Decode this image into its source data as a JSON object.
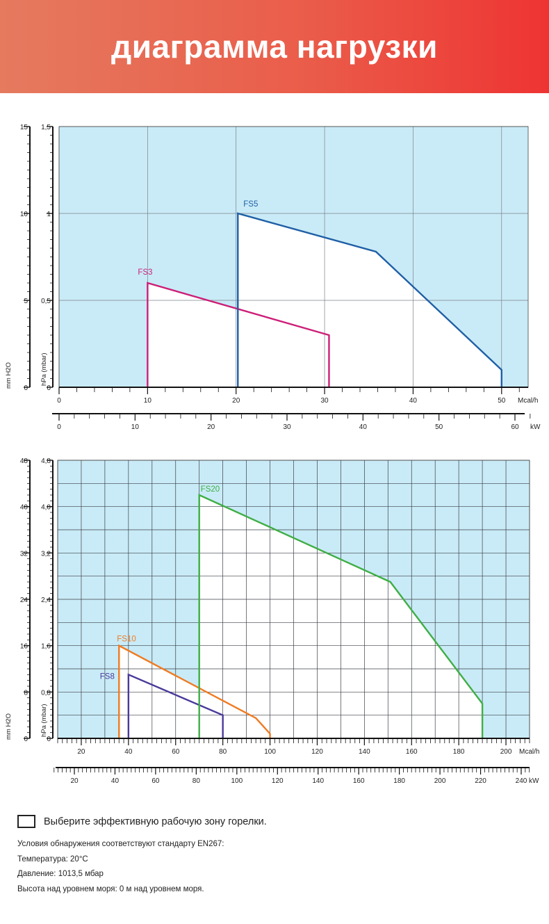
{
  "banner": {
    "title": "диаграмма нагрузки"
  },
  "chart_data": [
    {
      "type": "area",
      "left_axis_label_outer": "mm H2O",
      "left_axis_label_inner": "hPa (mbar)",
      "y_outer_ticks": [
        "15",
        "10",
        "5",
        "0"
      ],
      "y_inner_ticks": [
        "1,5",
        "1",
        "0,5",
        "0"
      ],
      "y_inner_range": [
        0,
        1.5
      ],
      "x_label": "Mcal/h",
      "x_ticks": [
        "0",
        "10",
        "20",
        "30",
        "40",
        "50"
      ],
      "x_range": [
        0,
        53
      ],
      "x2_label": "kW",
      "x2_ticks": [
        "0",
        "10",
        "20",
        "30",
        "40",
        "50",
        "60"
      ],
      "grid": true,
      "colors": {
        "background": "#c9ebf7",
        "grid": "#7a8088"
      },
      "series": [
        {
          "name": "FS3",
          "color": "#cc1f78",
          "points": [
            [
              10,
              0
            ],
            [
              10,
              0.6
            ],
            [
              30.5,
              0.3
            ],
            [
              30.5,
              0
            ]
          ]
        },
        {
          "name": "FS5",
          "color": "#1f5fa6",
          "points": [
            [
              20.2,
              0
            ],
            [
              20.2,
              1.0
            ],
            [
              35.8,
              0.78
            ],
            [
              50,
              0.1
            ],
            [
              50,
              0
            ]
          ]
        }
      ]
    },
    {
      "type": "area",
      "left_axis_label_outer": "mm H2O",
      "left_axis_label_inner": "hPa (mbar)",
      "y_outer_ticks": [
        "48",
        "40",
        "32",
        "24",
        "16",
        "8",
        "0"
      ],
      "y_inner_ticks": [
        "4,8",
        "4,0",
        "3,2",
        "2,4",
        "1,6",
        "0,8",
        "0"
      ],
      "y_inner_range": [
        0,
        4.8
      ],
      "x_label": "Mcal/h",
      "x_ticks": [
        "20",
        "40",
        "60",
        "80",
        "100",
        "120",
        "140",
        "160",
        "180",
        "200"
      ],
      "x_range": [
        10,
        210
      ],
      "x2_label": "kW",
      "x2_ticks": [
        "20",
        "40",
        "60",
        "80",
        "100",
        "120",
        "140",
        "160",
        "180",
        "200",
        "220",
        "240"
      ],
      "grid": true,
      "colors": {
        "background": "#c9ebf7",
        "grid": "#3a3f46"
      },
      "series": [
        {
          "name": "FS8",
          "color": "#4a3a9a",
          "points": [
            [
              40,
              0
            ],
            [
              40,
              1.1
            ],
            [
              80,
              0.4
            ],
            [
              80,
              0
            ]
          ]
        },
        {
          "name": "FS10",
          "color": "#ef7b22",
          "points": [
            [
              36,
              0
            ],
            [
              36,
              1.6
            ],
            [
              94,
              0.35
            ],
            [
              100,
              0.08
            ],
            [
              100,
              0
            ]
          ]
        },
        {
          "name": "FS20",
          "color": "#3fae45",
          "points": [
            [
              70,
              0
            ],
            [
              70,
              4.2
            ],
            [
              151,
              2.7
            ],
            [
              190,
              0.6
            ],
            [
              190,
              0
            ]
          ]
        }
      ]
    }
  ],
  "legend": {
    "text": "Выберите эффективную рабочую зону горелки."
  },
  "notes": [
    "Условия обнаружения соответствуют стандарту EN267:",
    "Температура: 20°C",
    "Давление: 1013,5 мбар",
    "Высота над уровнем моря: 0 м над уровнем моря."
  ]
}
